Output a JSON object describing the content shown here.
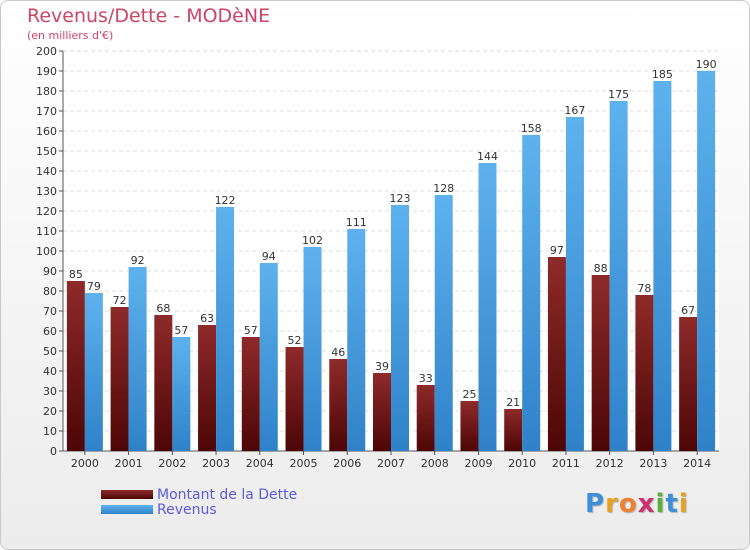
{
  "title": "Revenus/Dette - MODèNE",
  "subtitle": "(en milliers d'€)",
  "logo": {
    "letters": [
      "P",
      "r",
      "o",
      "x",
      "i",
      "t",
      "i"
    ],
    "colors": [
      "#3f8fd8",
      "#e8a020",
      "#f08030",
      "#d03070",
      "#58b040",
      "#3f8fd8",
      "#e8a020"
    ]
  },
  "colors": {
    "dette": "#7a1717",
    "revenus": "#4aa6e8",
    "title": "#cc4466",
    "legend_text": "#5b5bdc"
  },
  "chart_data": {
    "type": "bar",
    "title": "Revenus/Dette - MODèNE",
    "ylabel": "(en milliers d'€)",
    "ylim": [
      0,
      200
    ],
    "yticks": [
      0,
      10,
      20,
      30,
      40,
      50,
      60,
      70,
      80,
      90,
      100,
      110,
      120,
      130,
      140,
      150,
      160,
      170,
      180,
      190,
      200
    ],
    "grid": true,
    "legend_position": "bottom-left",
    "categories": [
      "2000",
      "2001",
      "2002",
      "2003",
      "2004",
      "2005",
      "2006",
      "2007",
      "2008",
      "2009",
      "2010",
      "2011",
      "2012",
      "2013",
      "2014"
    ],
    "series": [
      {
        "name": "Montant de la Dette",
        "values": [
          85,
          72,
          68,
          63,
          57,
          52,
          46,
          39,
          33,
          25,
          21,
          97,
          88,
          78,
          67
        ]
      },
      {
        "name": "Revenus",
        "values": [
          79,
          92,
          57,
          122,
          94,
          102,
          111,
          123,
          128,
          144,
          158,
          167,
          175,
          185,
          190
        ]
      }
    ]
  }
}
